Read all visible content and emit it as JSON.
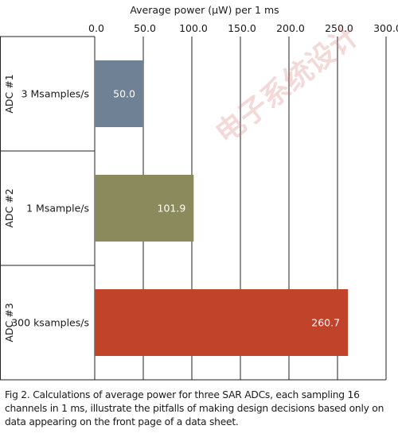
{
  "chart_data": {
    "type": "bar",
    "orientation": "horizontal",
    "title": "Average power (µW) per 1 ms",
    "xlim": [
      0,
      300
    ],
    "xticks": [
      0,
      50,
      100,
      150,
      200,
      250,
      300
    ],
    "xtick_labels": [
      "0.0",
      "50.0",
      "100.0",
      "150.0",
      "200.0",
      "250.0",
      "300.0"
    ],
    "grid": "vertical",
    "categories": [
      {
        "group": "ADC #1",
        "label": "3 Msamples/s",
        "value": 50.0,
        "value_label": "50.0",
        "color": "#6e8195"
      },
      {
        "group": "ADC #2",
        "label": "1 Msample/s",
        "value": 101.9,
        "value_label": "101.9",
        "color": "#8a8a5c"
      },
      {
        "group": "ADC #3",
        "label": "300 ksamples/s",
        "value": 260.7,
        "value_label": "260.7",
        "color": "#c0432a"
      }
    ]
  },
  "caption": "Fig 2. Calculations of average power for three SAR ADCs, each sampling 16 channels in 1 ms, illustrate the pitfalls of making design decisions based only on data appearing on the front page of a data sheet.",
  "watermark": "电子系统设计"
}
